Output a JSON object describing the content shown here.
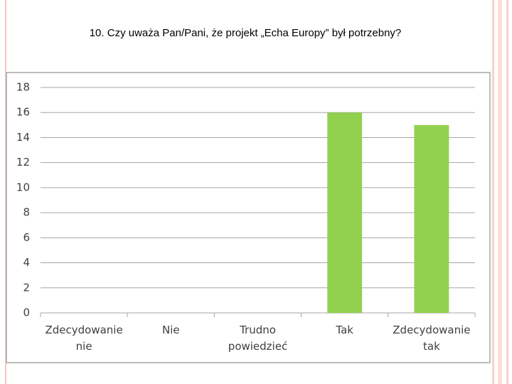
{
  "chart_data": {
    "type": "bar",
    "title": "10. Czy uważa Pan/Pani, że projekt „Echa Europy” był potrzebny?",
    "categories": [
      "Zdecydowanie nie",
      "Nie",
      "Trudno powiedzieć",
      "Tak",
      "Zdecydowanie tak"
    ],
    "values": [
      0,
      0,
      0,
      16,
      15
    ],
    "color": "#92d050",
    "ylim": [
      0,
      18
    ],
    "yticks": [
      0,
      2,
      4,
      6,
      8,
      10,
      12,
      14,
      16,
      18
    ],
    "grid": true
  }
}
